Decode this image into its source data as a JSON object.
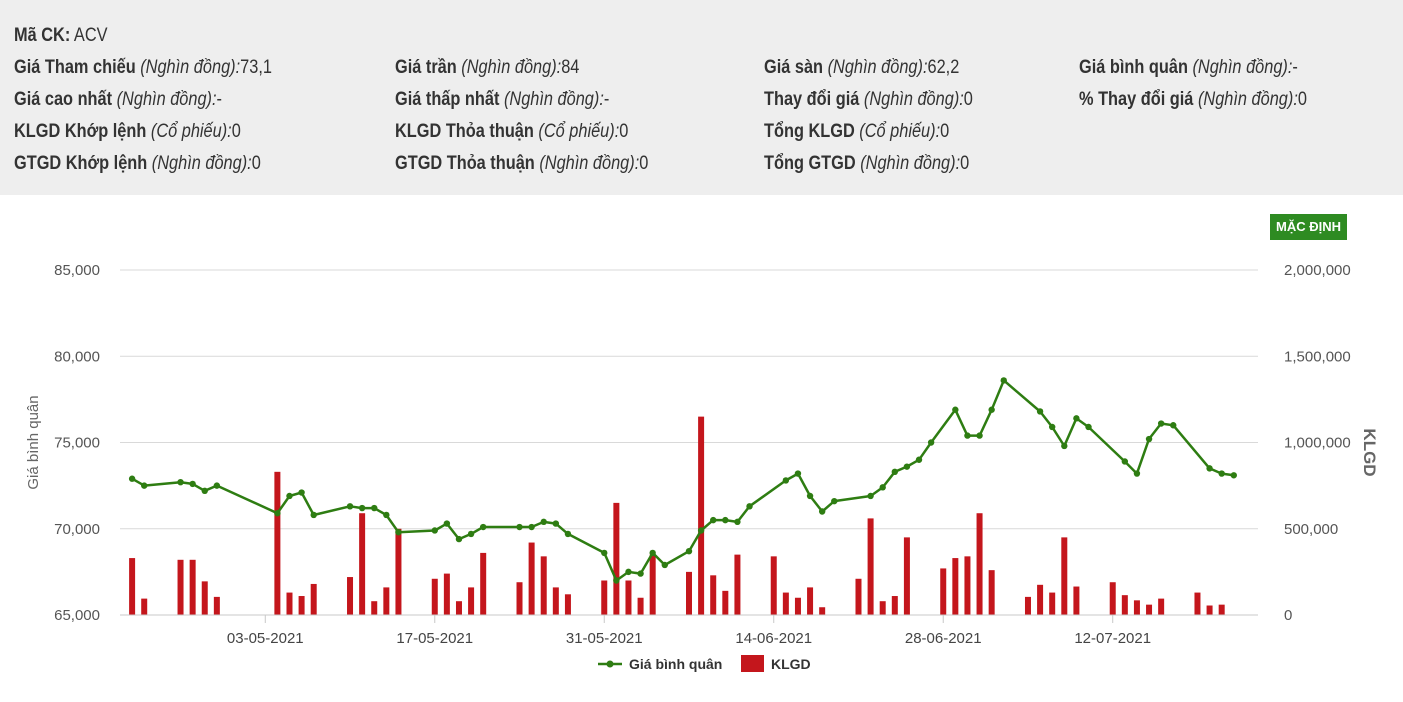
{
  "info": {
    "ma_ck": {
      "label": "Mã CK:",
      "value": "ACV"
    },
    "rows": [
      [
        {
          "label": "Giá Tham chiếu",
          "unit": "(Nghìn đồng):",
          "value": "73,1"
        },
        {
          "label": "Giá trần",
          "unit": "(Nghìn đồng):",
          "value": "84"
        },
        {
          "label": "Giá sàn",
          "unit": "(Nghìn đồng):",
          "value": "62,2"
        },
        {
          "label": "Giá bình quân",
          "unit": "(Nghìn đồng):",
          "value": "-"
        }
      ],
      [
        {
          "label": "Giá cao nhất",
          "unit": "(Nghìn đồng):",
          "value": "-"
        },
        {
          "label": "Giá thấp nhất",
          "unit": "(Nghìn đồng):",
          "value": "-"
        },
        {
          "label": "Thay đổi giá",
          "unit": "(Nghìn đồng):",
          "value": "0"
        },
        {
          "label": "% Thay đổi giá",
          "unit": "(Nghìn đồng):",
          "value": "0"
        }
      ],
      [
        {
          "label": "KLGD Khớp lệnh",
          "unit": "(Cổ phiếu):",
          "value": "0"
        },
        {
          "label": "KLGD Thỏa thuận",
          "unit": "(Cổ phiếu):",
          "value": "0"
        },
        {
          "label": "Tổng KLGD",
          "unit": "(Cổ phiếu):",
          "value": "0"
        }
      ],
      [
        {
          "label": "GTGD Khớp lệnh",
          "unit": "(Nghìn đồng):",
          "value": "0"
        },
        {
          "label": "GTGD Thỏa thuận",
          "unit": "(Nghìn đồng):",
          "value": "0"
        },
        {
          "label": "Tổng GTGD",
          "unit": "(Nghìn đồng):",
          "value": "0"
        }
      ]
    ]
  },
  "default_button": "MẶC ĐỊNH",
  "colors": {
    "line": "#2e7d12",
    "bar": "#c4161c",
    "button": "#2e8b22",
    "panel": "#eeeeee"
  },
  "chart_data": {
    "type": "bar+line",
    "x_axis": {
      "type": "datetime",
      "range": [
        "2021-04-21",
        "2021-07-24"
      ],
      "tick_labels": [
        "03-05-2021",
        "17-05-2021",
        "31-05-2021",
        "14-06-2021",
        "28-06-2021",
        "12-07-2021"
      ]
    },
    "y_left": {
      "label": "Giá bình quân",
      "range": [
        65000,
        85000
      ],
      "ticks": [
        "65,000",
        "70,000",
        "75,000",
        "80,000",
        "85,000"
      ]
    },
    "y_right": {
      "label": "KLGD",
      "range": [
        0,
        2000000
      ],
      "ticks": [
        "0",
        "500,000",
        "1,000,000",
        "1,500,000",
        "2,000,000"
      ]
    },
    "grid": true,
    "legend_position": "bottom-center",
    "series": [
      {
        "name": "Giá bình quân",
        "kind": "line",
        "points": [
          [
            "2021-04-22",
            72900
          ],
          [
            "2021-04-23",
            72500
          ],
          [
            "2021-04-26",
            72700
          ],
          [
            "2021-04-27",
            72600
          ],
          [
            "2021-04-28",
            72200
          ],
          [
            "2021-04-29",
            72500
          ],
          [
            "2021-05-04",
            70900
          ],
          [
            "2021-05-05",
            71900
          ],
          [
            "2021-05-06",
            72100
          ],
          [
            "2021-05-07",
            70800
          ],
          [
            "2021-05-10",
            71300
          ],
          [
            "2021-05-11",
            71200
          ],
          [
            "2021-05-12",
            71200
          ],
          [
            "2021-05-13",
            70800
          ],
          [
            "2021-05-14",
            69800
          ],
          [
            "2021-05-17",
            69900
          ],
          [
            "2021-05-18",
            70300
          ],
          [
            "2021-05-19",
            69400
          ],
          [
            "2021-05-20",
            69700
          ],
          [
            "2021-05-21",
            70100
          ],
          [
            "2021-05-24",
            70100
          ],
          [
            "2021-05-25",
            70100
          ],
          [
            "2021-05-26",
            70400
          ],
          [
            "2021-05-27",
            70300
          ],
          [
            "2021-05-28",
            69700
          ],
          [
            "2021-05-31",
            68600
          ],
          [
            "2021-06-01",
            67000
          ],
          [
            "2021-06-02",
            67500
          ],
          [
            "2021-06-03",
            67400
          ],
          [
            "2021-06-04",
            68600
          ],
          [
            "2021-06-05",
            67900
          ],
          [
            "2021-06-07",
            68700
          ],
          [
            "2021-06-08",
            69900
          ],
          [
            "2021-06-09",
            70500
          ],
          [
            "2021-06-10",
            70500
          ],
          [
            "2021-06-11",
            70400
          ],
          [
            "2021-06-12",
            71300
          ],
          [
            "2021-06-15",
            72800
          ],
          [
            "2021-06-16",
            73200
          ],
          [
            "2021-06-17",
            71900
          ],
          [
            "2021-06-18",
            71000
          ],
          [
            "2021-06-19",
            71600
          ],
          [
            "2021-06-22",
            71900
          ],
          [
            "2021-06-23",
            72400
          ],
          [
            "2021-06-24",
            73300
          ],
          [
            "2021-06-25",
            73600
          ],
          [
            "2021-06-26",
            74000
          ],
          [
            "2021-06-27",
            75000
          ],
          [
            "2021-06-29",
            76900
          ],
          [
            "2021-06-30",
            75400
          ],
          [
            "2021-07-01",
            75400
          ],
          [
            "2021-07-02",
            76900
          ],
          [
            "2021-07-03",
            78600
          ],
          [
            "2021-07-06",
            76800
          ],
          [
            "2021-07-07",
            75900
          ],
          [
            "2021-07-08",
            74800
          ],
          [
            "2021-07-09",
            76400
          ],
          [
            "2021-07-10",
            75900
          ],
          [
            "2021-07-13",
            73900
          ],
          [
            "2021-07-14",
            73200
          ],
          [
            "2021-07-15",
            75200
          ],
          [
            "2021-07-16",
            76100
          ],
          [
            "2021-07-17",
            76000
          ],
          [
            "2021-07-20",
            73500
          ],
          [
            "2021-07-21",
            73200
          ],
          [
            "2021-07-22",
            73100
          ]
        ]
      },
      {
        "name": "KLGD",
        "kind": "bar",
        "points": [
          [
            "2021-04-22",
            330000
          ],
          [
            "2021-04-23",
            95000
          ],
          [
            "2021-04-26",
            320000
          ],
          [
            "2021-04-27",
            320000
          ],
          [
            "2021-04-28",
            195000
          ],
          [
            "2021-04-29",
            105000
          ],
          [
            "2021-05-04",
            830000
          ],
          [
            "2021-05-05",
            130000
          ],
          [
            "2021-05-06",
            110000
          ],
          [
            "2021-05-07",
            180000
          ],
          [
            "2021-05-10",
            220000
          ],
          [
            "2021-05-11",
            590000
          ],
          [
            "2021-05-12",
            80000
          ],
          [
            "2021-05-13",
            160000
          ],
          [
            "2021-05-14",
            500000
          ],
          [
            "2021-05-17",
            210000
          ],
          [
            "2021-05-18",
            240000
          ],
          [
            "2021-05-19",
            80000
          ],
          [
            "2021-05-20",
            160000
          ],
          [
            "2021-05-21",
            360000
          ],
          [
            "2021-05-24",
            190000
          ],
          [
            "2021-05-25",
            420000
          ],
          [
            "2021-05-26",
            340000
          ],
          [
            "2021-05-27",
            160000
          ],
          [
            "2021-05-28",
            120000
          ],
          [
            "2021-05-31",
            200000
          ],
          [
            "2021-06-01",
            650000
          ],
          [
            "2021-06-02",
            200000
          ],
          [
            "2021-06-03",
            100000
          ],
          [
            "2021-06-04",
            350000
          ],
          [
            "2021-06-07",
            250000
          ],
          [
            "2021-06-08",
            1150000
          ],
          [
            "2021-06-09",
            230000
          ],
          [
            "2021-06-10",
            140000
          ],
          [
            "2021-06-11",
            350000
          ],
          [
            "2021-06-14",
            340000
          ],
          [
            "2021-06-15",
            130000
          ],
          [
            "2021-06-16",
            100000
          ],
          [
            "2021-06-17",
            160000
          ],
          [
            "2021-06-18",
            45000
          ],
          [
            "2021-06-21",
            210000
          ],
          [
            "2021-06-22",
            560000
          ],
          [
            "2021-06-23",
            80000
          ],
          [
            "2021-06-24",
            110000
          ],
          [
            "2021-06-25",
            450000
          ],
          [
            "2021-06-28",
            270000
          ],
          [
            "2021-06-29",
            330000
          ],
          [
            "2021-06-30",
            340000
          ],
          [
            "2021-07-01",
            590000
          ],
          [
            "2021-07-02",
            260000
          ],
          [
            "2021-07-05",
            105000
          ],
          [
            "2021-07-06",
            175000
          ],
          [
            "2021-07-07",
            130000
          ],
          [
            "2021-07-08",
            450000
          ],
          [
            "2021-07-09",
            165000
          ],
          [
            "2021-07-12",
            190000
          ],
          [
            "2021-07-13",
            115000
          ],
          [
            "2021-07-14",
            85000
          ],
          [
            "2021-07-15",
            60000
          ],
          [
            "2021-07-16",
            95000
          ],
          [
            "2021-07-19",
            130000
          ],
          [
            "2021-07-20",
            55000
          ],
          [
            "2021-07-21",
            60000
          ]
        ]
      }
    ]
  }
}
